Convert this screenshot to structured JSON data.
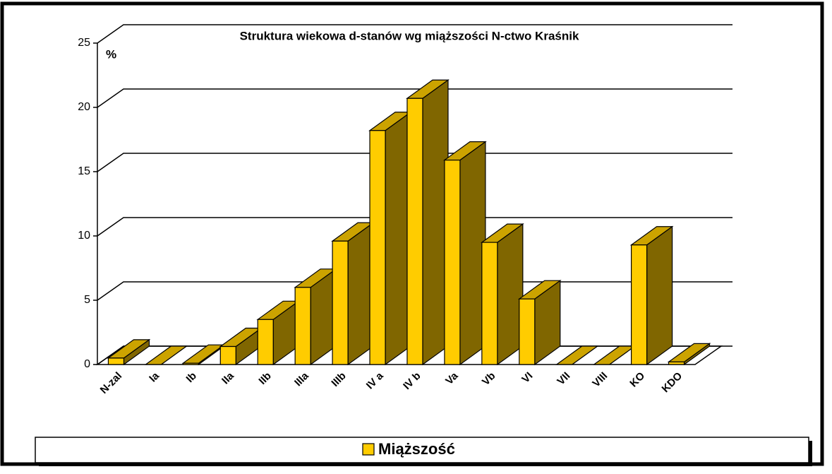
{
  "chart_data": {
    "type": "bar3d",
    "title": "Struktura wiekowa d-stanów wg miąższości  N-ctwo Kraśnik",
    "ylabel": "%",
    "categories": [
      "N-zal",
      "Ia",
      "Ib",
      "IIa",
      "IIb",
      "IIIa",
      "IIIb",
      "IV a",
      "IV b",
      "Va",
      "Vb",
      "VI",
      "VII",
      "VIII",
      "KO",
      "KDO"
    ],
    "series": [
      {
        "name": "Miąższość",
        "color": "#ffcc00",
        "values": [
          0.5,
          0,
          0.1,
          1.4,
          3.5,
          6.0,
          9.6,
          18.2,
          20.7,
          15.9,
          9.5,
          5.1,
          0,
          0,
          9.3,
          0.2
        ]
      }
    ],
    "ylim": [
      0,
      25
    ],
    "yticks": [
      0,
      5,
      10,
      15,
      20,
      25
    ],
    "grid": true,
    "legend": "bottom"
  }
}
